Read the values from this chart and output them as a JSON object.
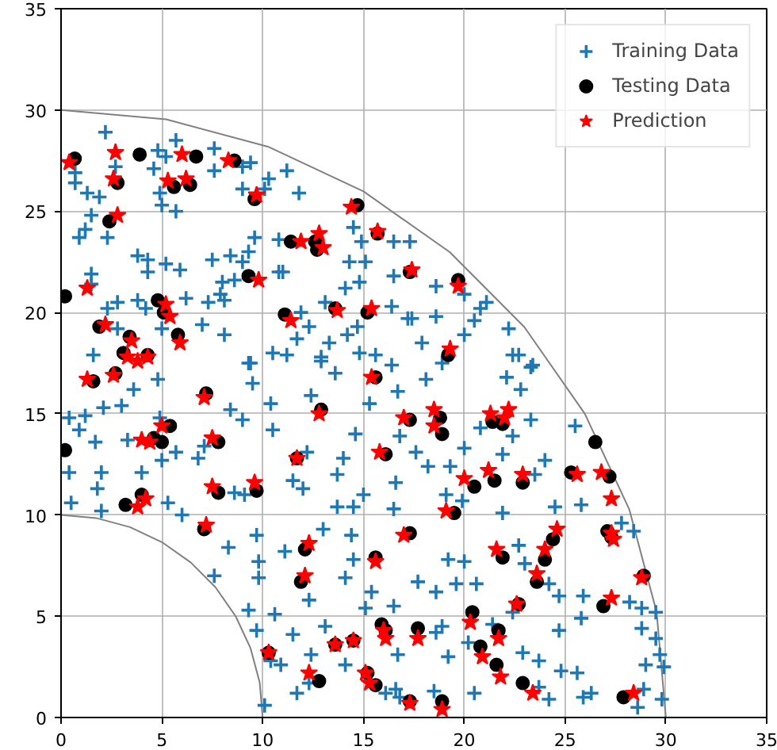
{
  "chart_data": {
    "type": "scatter",
    "xlim": [
      0,
      35
    ],
    "ylim": [
      0,
      35
    ],
    "xticks": [
      0,
      5,
      10,
      15,
      20,
      25,
      30,
      35
    ],
    "yticks": [
      0,
      5,
      10,
      15,
      20,
      25,
      30,
      35
    ],
    "grid": true,
    "legend": "top right",
    "series": [
      {
        "type": "line",
        "color": "#808080",
        "marker": "none",
        "x": [
          30,
          29.54,
          28.19,
          25.98,
          22.98,
          19.28,
          15,
          10.26,
          5.21,
          0
        ],
        "values": [
          0,
          5.21,
          10.26,
          15,
          19.28,
          22.98,
          25.98,
          28.19,
          29.54,
          30
        ]
      },
      {
        "type": "line",
        "color": "#808080",
        "marker": "none",
        "x": [
          10,
          9.85,
          9.4,
          8.66,
          7.66,
          6.43,
          5,
          3.42,
          1.74,
          0
        ],
        "values": [
          0,
          1.74,
          3.42,
          5,
          6.43,
          7.66,
          8.66,
          9.4,
          9.85,
          10
        ]
      },
      {
        "name": "Training Data",
        "color": "#1f77b4",
        "marker": "cross",
        "x": [
          2.2,
          5.7,
          4.8,
          5.2,
          7.6,
          4.6,
          2.7,
          0.7,
          0.7,
          1.3,
          1.9,
          7.6,
          9.0,
          9.4,
          11.2,
          10.3,
          9.0,
          4.9,
          5.0,
          5.7,
          11.8,
          10.1,
          1.5,
          1.2,
          0.9,
          2.3,
          14.5,
          14.9,
          16.5,
          17.3,
          9.6,
          10.8,
          9.3,
          9.0,
          8.4,
          7.5,
          3.8,
          4.3,
          4.3,
          5.2,
          5.9,
          1.5,
          1.5,
          8.0,
          7.9,
          8.6,
          10.8,
          11.0,
          14.3,
          15.1,
          16.5,
          14.1,
          14.8,
          6.2,
          7.3,
          8.1,
          3.8,
          4.2,
          2.3,
          2.8,
          13.1,
          16.4,
          17.2,
          11.9,
          12.3,
          14.7,
          14.2,
          13.3,
          11.7,
          8.1,
          7.0,
          5.0,
          2.8,
          1.6,
          9.4,
          10.5,
          11.2,
          12.9,
          14.8,
          15.6,
          16.4,
          18.6,
          17.4,
          18.6,
          20.5,
          20.8,
          21.1,
          20.0,
          20.0,
          17.9,
          22.2,
          22.4,
          22.7,
          23.4,
          18.9,
          3.6,
          4.8,
          0.4,
          1.2,
          0.9,
          2.1,
          3.0,
          1.7,
          3.3,
          4.0,
          2.0,
          0.4,
          1.8,
          0.5,
          2.0,
          5.3,
          5.7,
          5.0,
          4.9,
          6.8,
          7.1,
          6.0,
          8.3,
          7.6,
          8.6,
          9.1,
          8.4,
          9.0,
          9.3,
          9.5,
          10.4,
          10.5,
          9.7,
          9.8,
          9.8,
          9.3,
          9.7,
          10.6,
          10.4,
          10.9,
          10.1,
          11.5,
          12.4,
          13.1,
          14.1,
          11.7,
          12.3,
          11.1,
          12.3,
          12.9,
          13.6,
          12.4,
          15.3,
          14.6,
          14.0,
          13.7,
          12.2,
          11.5,
          12.0,
          13.7,
          14.5,
          15.0,
          13.0,
          14.4,
          14.5,
          14.1,
          15.4,
          15.1,
          16.5,
          16.6,
          16.5,
          16.8,
          16.7,
          16.7,
          16.1,
          16.6,
          18.1,
          20.0,
          17.6,
          19.3,
          18.2,
          21.9,
          24.0,
          23.5,
          20.8,
          22.4,
          23.3,
          25.5,
          22.1,
          22.8,
          23.3,
          19.1,
          19.9,
          21.9,
          24.5,
          25.8,
          27.8,
          28.4,
          19.2,
          20.0,
          17.7,
          18.6,
          19.6,
          20.6,
          22.7,
          23.0,
          24.2,
          24.7,
          25.9,
          25.8,
          28.2,
          28.8,
          29.5,
          28.8,
          29.5,
          24.7,
          22.4,
          20.2,
          18.9,
          18.6,
          21.4,
          19.2,
          23.7,
          24.8,
          25.6,
          29.0,
          29.7,
          29.9,
          28.9,
          23.7,
          24.2,
          25.9,
          26.3,
          28.6,
          29.8,
          20.5,
          18.5,
          16.8,
          22.9
        ],
        "values": [
          28.9,
          28.5,
          28.0,
          27.7,
          28.1,
          27.1,
          27.2,
          26.9,
          26.4,
          25.9,
          25.7,
          27.0,
          27.2,
          27.4,
          27.0,
          26.6,
          26.1,
          25.9,
          25.3,
          25.0,
          25.9,
          26.1,
          24.8,
          24.1,
          23.7,
          23.7,
          24.2,
          23.5,
          23.5,
          23.5,
          23.7,
          23.6,
          23.0,
          22.5,
          22.8,
          22.6,
          22.8,
          22.6,
          22.0,
          22.4,
          22.1,
          21.9,
          21.4,
          21.5,
          20.9,
          21.6,
          22.0,
          22.0,
          22.5,
          22.5,
          21.8,
          21.2,
          21.5,
          20.7,
          20.5,
          20.6,
          20.6,
          20.2,
          20.2,
          20.5,
          20.5,
          20.3,
          19.7,
          20.0,
          19.3,
          19.3,
          18.9,
          18.5,
          18.7,
          18.9,
          19.4,
          19.2,
          19.2,
          17.9,
          17.5,
          18.0,
          17.9,
          17.8,
          18.0,
          17.9,
          17.4,
          21.3,
          19.7,
          19.8,
          19.6,
          20.2,
          20.5,
          20.9,
          18.9,
          18.5,
          19.2,
          17.9,
          17.9,
          17.4,
          17.5,
          16.2,
          16.7,
          14.8,
          14.9,
          14.2,
          15.3,
          15.4,
          13.6,
          13.7,
          12.1,
          12.1,
          12.1,
          11.3,
          10.6,
          10.2,
          10.6,
          13.1,
          12.7,
          14.8,
          12.8,
          13.4,
          10.0,
          8.4,
          7.0,
          11.1,
          11.0,
          15.2,
          14.7,
          17.5,
          16.5,
          15.5,
          14.2,
          9.0,
          7.7,
          6.9,
          5.3,
          4.3,
          5.1,
          2.8,
          2.6,
          0.6,
          4.1,
          3.1,
          4.5,
          2.6,
          1.2,
          1.7,
          8.2,
          5.8,
          17.6,
          17.0,
          15.9,
          15.5,
          14.0,
          12.8,
          12.0,
          13.1,
          11.7,
          11.3,
          10.4,
          10.4,
          11.0,
          9.3,
          9.0,
          7.8,
          6.9,
          6.2,
          5.4,
          5.5,
          11.6,
          10.3,
          13.9,
          16.1,
          3.1,
          1.2,
          1.4,
          16.7,
          13.3,
          13.1,
          12.4,
          12.4,
          13.0,
          12.7,
          12.0,
          14.3,
          13.9,
          14.7,
          14.4,
          16.8,
          16.2,
          17.3,
          11.0,
          10.7,
          10.1,
          10.4,
          10.5,
          9.6,
          9.2,
          7.8,
          7.7,
          6.7,
          6.2,
          6.6,
          6.6,
          8.5,
          7.6,
          6.6,
          6.0,
          6.0,
          4.9,
          5.7,
          5.4,
          5.2,
          4.4,
          3.9,
          4.3,
          5.2,
          3.7,
          4.5,
          4.2,
          4.6,
          3.0,
          2.8,
          2.3,
          2.2,
          2.6,
          3.1,
          2.5,
          1.4,
          1.5,
          0.9,
          1.0,
          1.2,
          0.5,
          0.9,
          1.2,
          1.3,
          1.0,
          3.2
        ]
      },
      {
        "name": "Testing Data",
        "color": "#000000",
        "marker": "circle",
        "x": [
          0.68,
          3.9,
          6.7,
          2.8,
          5.6,
          6.4,
          8.6,
          9.6,
          2.4,
          14.7,
          15.7,
          11.4,
          12.6,
          12.7,
          9.3,
          17.3,
          0.2,
          4.8,
          5.1,
          11.1,
          13.6,
          15.2,
          1.9,
          5.8,
          3.4,
          4.3,
          3.1,
          19.7,
          19.2,
          1.6,
          2.7,
          7.2,
          5.4,
          5.0,
          4.6,
          0.2,
          7.8,
          12.9,
          15.6,
          11.7,
          16.1,
          3.2,
          4.0,
          7.8,
          9.7,
          7.1,
          12.1,
          11.9,
          15.6,
          17.3,
          15.9,
          16.1,
          14.5,
          13.6,
          10.3,
          12.8,
          15.2,
          15.6,
          17.3,
          17.3,
          18.8,
          18.9,
          21.4,
          21.9,
          26.5,
          20.5,
          21.5,
          22.9,
          25.3,
          27.2,
          19.5,
          24.4,
          27.1,
          27.3,
          21.9,
          24.0,
          23.6,
          28.9,
          22.7,
          26.9,
          20.4,
          17.7,
          21.7,
          20.8,
          21.6,
          22.9,
          27.9,
          18.9
        ],
        "values": [
          27.6,
          27.8,
          27.7,
          26.4,
          26.2,
          26.3,
          27.5,
          25.6,
          24.5,
          25.3,
          23.9,
          23.5,
          23.5,
          23.1,
          21.8,
          22.0,
          20.8,
          20.6,
          20.0,
          19.9,
          20.2,
          20.0,
          19.3,
          18.9,
          18.8,
          17.9,
          18.0,
          21.6,
          17.9,
          16.6,
          17.0,
          16.0,
          14.4,
          13.6,
          13.8,
          13.2,
          13.6,
          15.2,
          16.8,
          12.8,
          13.0,
          10.5,
          11.0,
          11.1,
          11.2,
          9.3,
          8.3,
          6.7,
          7.9,
          9.1,
          4.6,
          4.3,
          3.8,
          3.6,
          3.2,
          1.8,
          2.2,
          1.6,
          0.8,
          14.7,
          14.8,
          14.0,
          14.6,
          14.5,
          13.6,
          11.4,
          11.7,
          11.6,
          12.1,
          11.9,
          10.1,
          8.8,
          9.2,
          8.9,
          7.9,
          7.8,
          6.7,
          7.0,
          5.6,
          5.5,
          5.2,
          4.4,
          4.3,
          3.5,
          2.6,
          1.7,
          1.0,
          0.8
        ]
      },
      {
        "name": "Prediction",
        "color": "#ff0000",
        "marker": "star",
        "x": [
          0.4,
          2.7,
          2.6,
          6.0,
          5.3,
          6.2,
          8.3,
          9.7,
          2.8,
          14.4,
          15.7,
          11.9,
          12.8,
          13.0,
          9.8,
          1.3,
          5.2,
          5.4,
          11.4,
          13.7,
          15.4,
          2.2,
          5.9,
          3.5,
          4.3,
          3.3,
          3.8,
          17.4,
          19.7,
          19.3,
          1.3,
          2.6,
          7.1,
          5.0,
          4.0,
          4.4,
          7.5,
          12.8,
          15.4,
          11.7,
          15.8,
          3.8,
          4.2,
          7.5,
          9.6,
          7.2,
          12.3,
          12.1,
          15.6,
          17.0,
          16.0,
          16.1,
          14.5,
          13.6,
          10.3,
          12.3,
          15.1,
          15.3,
          17.0,
          18.5,
          18.5,
          21.3,
          22.2,
          22.0,
          20.0,
          21.2,
          22.9,
          25.6,
          26.8,
          27.3,
          19.1,
          24.6,
          27.3,
          27.4,
          21.6,
          24.0,
          23.6,
          28.8,
          22.6,
          27.3,
          20.3,
          17.7,
          21.7,
          20.9,
          21.8,
          23.4,
          28.4,
          17.3,
          18.9
        ],
        "values": [
          27.4,
          27.9,
          26.6,
          27.8,
          26.5,
          26.6,
          27.5,
          25.8,
          24.8,
          25.2,
          24.0,
          23.5,
          23.9,
          23.2,
          21.6,
          21.2,
          20.4,
          19.8,
          19.6,
          20.1,
          20.2,
          19.4,
          18.5,
          18.6,
          17.8,
          17.8,
          17.6,
          22.1,
          21.3,
          18.2,
          16.7,
          16.9,
          15.8,
          14.4,
          13.7,
          13.6,
          13.8,
          15.0,
          16.8,
          12.8,
          13.1,
          10.4,
          10.8,
          11.4,
          11.6,
          9.5,
          8.6,
          7.0,
          7.7,
          9.0,
          4.3,
          3.9,
          3.8,
          3.6,
          3.2,
          2.2,
          2.2,
          1.7,
          14.8,
          15.2,
          14.4,
          15.0,
          15.2,
          14.8,
          11.8,
          12.2,
          12.0,
          12.0,
          12.1,
          10.8,
          10.2,
          9.3,
          9.1,
          8.8,
          8.3,
          8.3,
          7.1,
          6.9,
          5.6,
          5.9,
          4.7,
          3.9,
          3.9,
          3.0,
          2.0,
          1.2,
          1.2,
          0.7,
          0.4
        ]
      }
    ]
  }
}
